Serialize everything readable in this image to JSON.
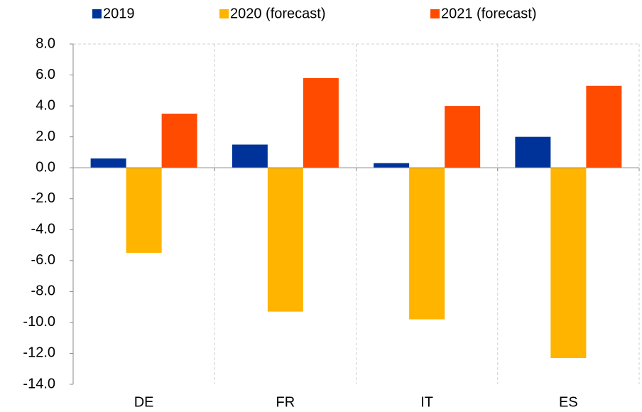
{
  "chart_data": {
    "type": "bar",
    "categories": [
      "DE",
      "FR",
      "IT",
      "ES"
    ],
    "series": [
      {
        "name": "2019",
        "color": "#003399",
        "values": [
          0.6,
          1.5,
          0.3,
          2.0
        ]
      },
      {
        "name": "2020 (forecast)",
        "color": "#ffb400",
        "values": [
          -5.5,
          -9.3,
          -9.8,
          -12.3
        ]
      },
      {
        "name": "2021 (forecast)",
        "color": "#ff4b00",
        "values": [
          3.5,
          5.8,
          4.0,
          5.3
        ]
      }
    ],
    "ylim": [
      -14,
      8
    ],
    "yticks": [
      {
        "value": 8,
        "label": "8.0"
      },
      {
        "value": 6,
        "label": "6.0"
      },
      {
        "value": 4,
        "label": "4.0"
      },
      {
        "value": 2,
        "label": "2.0"
      },
      {
        "value": 0,
        "label": "0.0"
      },
      {
        "value": -2,
        "label": "-2.0"
      },
      {
        "value": -4,
        "label": "-4.0"
      },
      {
        "value": -6,
        "label": "-6.0"
      },
      {
        "value": -8,
        "label": "-8.0"
      },
      {
        "value": -10,
        "label": "-10.0"
      },
      {
        "value": -12,
        "label": "-12.0"
      },
      {
        "value": -14,
        "label": "-14.0"
      }
    ],
    "legend": "top"
  }
}
